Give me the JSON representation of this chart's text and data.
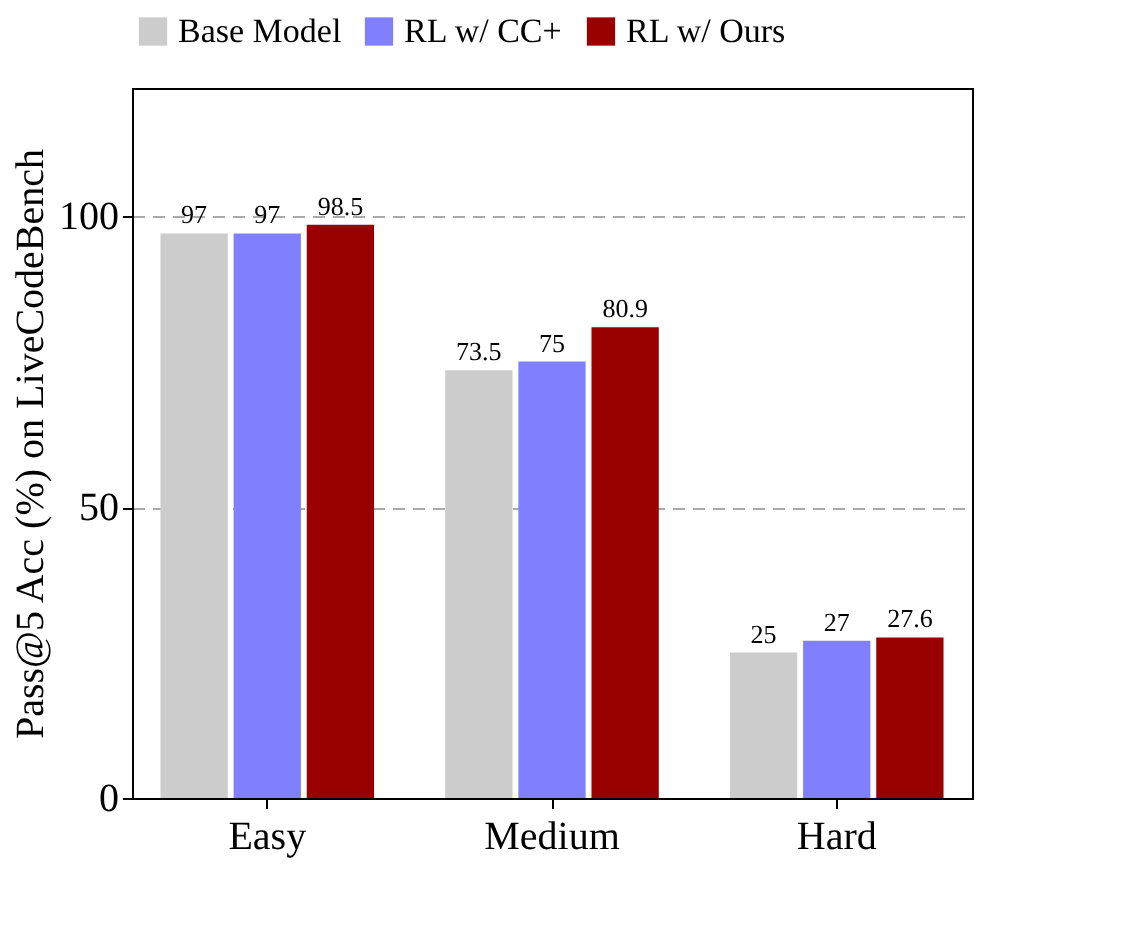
{
  "chart_data": {
    "type": "bar",
    "ylabel": "Pass@5 Acc (%) on LiveCodeBench",
    "categories": [
      "Easy",
      "Medium",
      "Hard"
    ],
    "series": [
      {
        "name": "Base Model",
        "color": "#cccccc",
        "values": [
          97,
          73.5,
          25
        ]
      },
      {
        "name": "RL w/ CC+",
        "color": "#8080ff",
        "values": [
          97,
          75,
          27
        ]
      },
      {
        "name": "RL w/ Ours",
        "color": "#990000",
        "values": [
          98.5,
          80.9,
          27.6
        ]
      }
    ],
    "ylim": [
      0,
      122
    ],
    "yticks": [
      0,
      50,
      100
    ],
    "grid": "y",
    "legend": "top",
    "data_labels": true
  }
}
